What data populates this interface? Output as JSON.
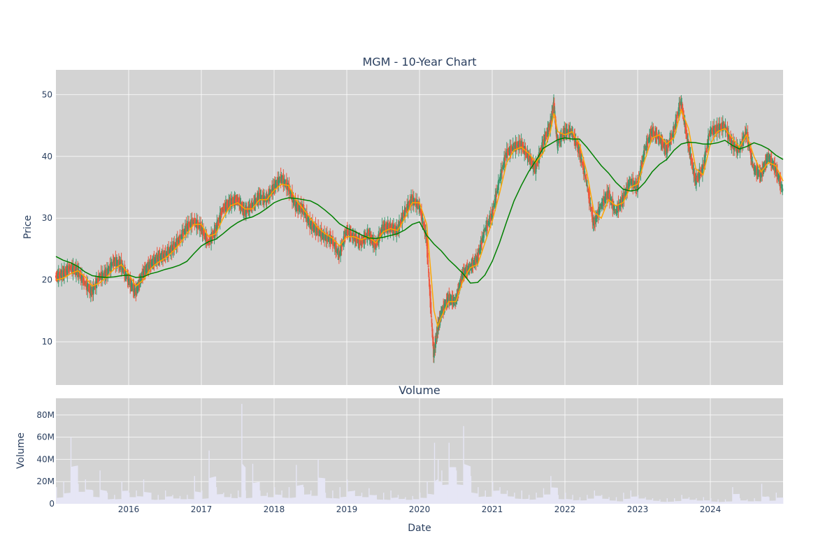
{
  "chart_data": [
    {
      "type": "candlestick",
      "title": "MGM - 10-Year Chart",
      "ylabel": "Price",
      "ylim": [
        3,
        54
      ],
      "xlim": [
        2015.0,
        2025.0
      ],
      "x_ticks": [
        "2016",
        "2017",
        "2018",
        "2019",
        "2020",
        "2021",
        "2022",
        "2023",
        "2024"
      ],
      "y_ticks": [
        10,
        20,
        30,
        40,
        50
      ],
      "grid": true,
      "colors": {
        "background": "#d3d3d3",
        "increasing": "#3d9970",
        "decreasing": "#ef553b",
        "ma_short": "#ffa500",
        "ma_long": "#008000"
      },
      "price_close": {
        "x": [
          2015.0,
          2015.1,
          2015.2,
          2015.3,
          2015.4,
          2015.5,
          2015.6,
          2015.7,
          2015.8,
          2015.9,
          2016.0,
          2016.1,
          2016.2,
          2016.3,
          2016.4,
          2016.5,
          2016.6,
          2016.7,
          2016.8,
          2016.9,
          2017.0,
          2017.1,
          2017.2,
          2017.3,
          2017.4,
          2017.5,
          2017.6,
          2017.7,
          2017.8,
          2017.9,
          2018.0,
          2018.1,
          2018.2,
          2018.3,
          2018.4,
          2018.5,
          2018.6,
          2018.7,
          2018.8,
          2018.9,
          2019.0,
          2019.1,
          2019.2,
          2019.3,
          2019.4,
          2019.5,
          2019.6,
          2019.7,
          2019.8,
          2019.9,
          2020.0,
          2020.1,
          2020.2,
          2020.25,
          2020.3,
          2020.4,
          2020.5,
          2020.6,
          2020.7,
          2020.8,
          2020.9,
          2021.0,
          2021.1,
          2021.2,
          2021.3,
          2021.4,
          2021.5,
          2021.6,
          2021.7,
          2021.8,
          2021.85,
          2021.9,
          2022.0,
          2022.1,
          2022.2,
          2022.3,
          2022.4,
          2022.5,
          2022.6,
          2022.7,
          2022.8,
          2022.9,
          2023.0,
          2023.1,
          2023.2,
          2023.3,
          2023.4,
          2023.5,
          2023.6,
          2023.7,
          2023.8,
          2023.9,
          2024.0,
          2024.1,
          2024.2,
          2024.3,
          2024.4,
          2024.5,
          2024.6,
          2024.7,
          2024.8,
          2024.9,
          2025.0
        ],
        "values": [
          20.5,
          21.0,
          22.0,
          21.5,
          19.5,
          18.0,
          20.5,
          21.0,
          23.0,
          22.5,
          20.0,
          18.0,
          21.0,
          22.5,
          23.5,
          24.0,
          25.0,
          26.5,
          28.5,
          29.5,
          28.5,
          26.0,
          28.0,
          31.5,
          32.5,
          33.0,
          31.0,
          32.0,
          33.5,
          33.0,
          35.0,
          36.5,
          35.0,
          32.0,
          31.5,
          29.0,
          28.0,
          27.0,
          26.5,
          24.0,
          28.0,
          27.0,
          26.0,
          27.5,
          25.5,
          28.5,
          28.5,
          28.0,
          31.0,
          33.0,
          32.0,
          27.0,
          8.0,
          12.0,
          14.5,
          17.0,
          16.5,
          21.0,
          22.0,
          23.5,
          28.0,
          30.5,
          36.0,
          40.5,
          41.5,
          42.0,
          40.0,
          38.0,
          42.0,
          45.0,
          48.5,
          42.0,
          44.0,
          44.0,
          41.0,
          36.0,
          29.0,
          32.0,
          34.0,
          31.0,
          33.0,
          36.0,
          35.0,
          41.0,
          44.0,
          43.0,
          41.0,
          44.0,
          49.0,
          42.0,
          36.0,
          38.0,
          44.0,
          44.5,
          45.0,
          42.0,
          41.0,
          44.0,
          38.0,
          37.0,
          40.0,
          38.0,
          34.5
        ]
      },
      "series": [
        {
          "x": [
            2015.0,
            2015.1,
            2015.2,
            2015.3,
            2015.4,
            2015.5,
            2015.6,
            2015.7,
            2015.8,
            2015.9,
            2016.0,
            2016.1,
            2016.2,
            2016.3,
            2016.4,
            2016.5,
            2016.6,
            2016.7,
            2016.8,
            2016.9,
            2017.0,
            2017.1,
            2017.2,
            2017.3,
            2017.4,
            2017.5,
            2017.6,
            2017.7,
            2017.8,
            2017.9,
            2018.0,
            2018.1,
            2018.2,
            2018.3,
            2018.4,
            2018.5,
            2018.6,
            2018.7,
            2018.8,
            2018.9,
            2019.0,
            2019.1,
            2019.2,
            2019.3,
            2019.4,
            2019.5,
            2019.6,
            2019.7,
            2019.8,
            2019.9,
            2020.0,
            2020.1,
            2020.2,
            2020.25,
            2020.3,
            2020.4,
            2020.5,
            2020.6,
            2020.7,
            2020.8,
            2020.9,
            2021.0,
            2021.1,
            2021.2,
            2021.3,
            2021.4,
            2021.5,
            2021.6,
            2021.7,
            2021.8,
            2021.85,
            2021.9,
            2022.0,
            2022.1,
            2022.2,
            2022.3,
            2022.4,
            2022.5,
            2022.6,
            2022.7,
            2022.8,
            2022.9,
            2023.0,
            2023.1,
            2023.2,
            2023.3,
            2023.4,
            2023.5,
            2023.6,
            2023.7,
            2023.8,
            2023.9,
            2024.0,
            2024.1,
            2024.2,
            2024.3,
            2024.4,
            2024.5,
            2024.6,
            2024.7,
            2024.8,
            2024.9,
            2025.0
          ],
          "values": [
            20.0,
            20.3,
            21.0,
            21.5,
            20.5,
            19.0,
            19.5,
            20.5,
            21.8,
            22.5,
            21.0,
            19.0,
            20.0,
            21.8,
            22.8,
            23.5,
            24.5,
            25.8,
            27.5,
            29.0,
            29.0,
            27.0,
            27.5,
            30.0,
            32.0,
            32.5,
            31.5,
            31.5,
            33.0,
            33.0,
            34.5,
            35.5,
            35.3,
            33.0,
            31.5,
            30.0,
            28.5,
            27.5,
            26.8,
            25.5,
            27.0,
            27.0,
            26.5,
            27.0,
            26.0,
            27.8,
            28.3,
            28.0,
            30.0,
            32.5,
            32.5,
            29.0,
            15.0,
            12.5,
            14.0,
            16.5,
            16.5,
            20.0,
            22.0,
            22.5,
            26.0,
            29.5,
            34.0,
            39.0,
            41.0,
            41.5,
            40.5,
            39.0,
            40.5,
            44.0,
            47.0,
            44.0,
            43.5,
            44.0,
            42.0,
            37.5,
            31.0,
            30.0,
            33.0,
            32.0,
            32.5,
            35.0,
            35.5,
            39.5,
            43.0,
            43.5,
            42.0,
            43.0,
            47.5,
            44.5,
            38.0,
            37.0,
            42.0,
            44.0,
            44.5,
            43.0,
            41.5,
            43.5,
            40.0,
            37.5,
            39.0,
            38.5,
            36.0
          ]
        },
        {
          "x": [
            2015.0,
            2015.1,
            2015.2,
            2015.3,
            2015.4,
            2015.5,
            2015.6,
            2015.7,
            2015.8,
            2015.9,
            2016.0,
            2016.1,
            2016.2,
            2016.3,
            2016.4,
            2016.5,
            2016.6,
            2016.7,
            2016.8,
            2016.9,
            2017.0,
            2017.1,
            2017.2,
            2017.3,
            2017.4,
            2017.5,
            2017.6,
            2017.7,
            2017.8,
            2017.9,
            2018.0,
            2018.1,
            2018.2,
            2018.3,
            2018.4,
            2018.5,
            2018.6,
            2018.7,
            2018.8,
            2018.9,
            2019.0,
            2019.1,
            2019.2,
            2019.3,
            2019.4,
            2019.5,
            2019.6,
            2019.7,
            2019.8,
            2019.9,
            2020.0,
            2020.1,
            2020.2,
            2020.3,
            2020.4,
            2020.5,
            2020.6,
            2020.7,
            2020.8,
            2020.9,
            2021.0,
            2021.1,
            2021.2,
            2021.3,
            2021.4,
            2021.5,
            2021.6,
            2021.7,
            2021.8,
            2021.9,
            2022.0,
            2022.1,
            2022.2,
            2022.3,
            2022.4,
            2022.5,
            2022.6,
            2022.7,
            2022.8,
            2022.9,
            2023.0,
            2023.1,
            2023.2,
            2023.3,
            2023.4,
            2023.5,
            2023.6,
            2023.7,
            2023.8,
            2023.9,
            2024.0,
            2024.1,
            2024.2,
            2024.3,
            2024.4,
            2024.5,
            2024.6,
            2024.7,
            2024.8,
            2024.9,
            2025.0
          ],
          "values": [
            23.8,
            23.2,
            22.8,
            22.2,
            21.3,
            20.7,
            20.5,
            20.4,
            20.5,
            20.7,
            20.8,
            20.4,
            20.5,
            21.0,
            21.3,
            21.7,
            22.0,
            22.4,
            23.0,
            24.3,
            25.5,
            26.2,
            26.6,
            27.5,
            28.5,
            29.3,
            29.9,
            30.2,
            30.8,
            31.6,
            32.5,
            33.0,
            33.3,
            33.2,
            33.0,
            32.8,
            32.2,
            31.3,
            30.3,
            29.1,
            28.4,
            27.9,
            27.3,
            26.8,
            26.7,
            26.9,
            27.2,
            27.5,
            28.1,
            29.0,
            29.4,
            27.2,
            25.8,
            24.7,
            23.3,
            22.2,
            21.0,
            19.5,
            19.6,
            20.8,
            23.0,
            26.0,
            29.5,
            32.8,
            35.3,
            37.5,
            39.3,
            41.3,
            42.0,
            42.7,
            43.0,
            42.8,
            42.8,
            41.5,
            40.0,
            38.5,
            37.3,
            35.8,
            34.7,
            34.4,
            34.6,
            35.8,
            37.5,
            38.7,
            39.5,
            41.0,
            42.0,
            42.3,
            42.2,
            42.0,
            42.0,
            42.2,
            42.6,
            41.8,
            41.2,
            41.6,
            42.2,
            41.8,
            41.2,
            40.2,
            39.5
          ]
        }
      ]
    },
    {
      "type": "bar",
      "title": "Volume",
      "xlabel": "Date",
      "ylabel": "Volume",
      "ylim": [
        0,
        95000000
      ],
      "xlim": [
        2015.0,
        2025.0
      ],
      "y_ticks": [
        "0",
        "20M",
        "40M",
        "60M",
        "80M"
      ],
      "y_tick_values": [
        0,
        20000000,
        40000000,
        60000000,
        80000000
      ],
      "x_ticks": [
        "2016",
        "2017",
        "2018",
        "2019",
        "2020",
        "2021",
        "2022",
        "2023",
        "2024"
      ],
      "grid": true,
      "colors": {
        "background": "#d3d3d3",
        "bar": "#e6e6f5"
      },
      "series": [
        {
          "x": [
            2015.0,
            2015.1,
            2015.2,
            2015.3,
            2015.4,
            2015.5,
            2015.6,
            2015.7,
            2015.8,
            2015.9,
            2016.0,
            2016.1,
            2016.2,
            2016.3,
            2016.4,
            2016.5,
            2016.6,
            2016.7,
            2016.8,
            2016.9,
            2017.0,
            2017.1,
            2017.2,
            2017.3,
            2017.4,
            2017.5,
            2017.55,
            2017.6,
            2017.7,
            2017.8,
            2017.9,
            2018.0,
            2018.1,
            2018.2,
            2018.3,
            2018.4,
            2018.5,
            2018.6,
            2018.7,
            2018.8,
            2018.9,
            2019.0,
            2019.1,
            2019.2,
            2019.3,
            2019.4,
            2019.5,
            2019.6,
            2019.7,
            2019.8,
            2019.9,
            2020.0,
            2020.1,
            2020.2,
            2020.25,
            2020.3,
            2020.4,
            2020.5,
            2020.6,
            2020.7,
            2020.8,
            2020.9,
            2021.0,
            2021.1,
            2021.2,
            2021.3,
            2021.4,
            2021.5,
            2021.6,
            2021.7,
            2021.8,
            2021.9,
            2022.0,
            2022.1,
            2022.2,
            2022.3,
            2022.4,
            2022.5,
            2022.6,
            2022.7,
            2022.8,
            2022.9,
            2023.0,
            2023.1,
            2023.2,
            2023.3,
            2023.4,
            2023.5,
            2023.6,
            2023.7,
            2023.8,
            2023.9,
            2024.0,
            2024.1,
            2024.2,
            2024.3,
            2024.4,
            2024.5,
            2024.6,
            2024.7,
            2024.8,
            2024.9,
            2025.0
          ],
          "values": [
            15000000,
            20000000,
            60000000,
            18000000,
            22000000,
            12000000,
            30000000,
            10000000,
            8000000,
            20000000,
            10000000,
            12000000,
            22000000,
            10000000,
            8000000,
            12000000,
            8000000,
            7000000,
            8000000,
            25000000,
            12000000,
            48000000,
            15000000,
            10000000,
            9000000,
            12000000,
            90000000,
            12000000,
            36000000,
            12000000,
            10000000,
            15000000,
            12000000,
            15000000,
            35000000,
            15000000,
            12000000,
            40000000,
            10000000,
            12000000,
            15000000,
            22000000,
            12000000,
            10000000,
            14000000,
            8000000,
            10000000,
            12000000,
            8000000,
            6000000,
            7000000,
            10000000,
            20000000,
            55000000,
            40000000,
            30000000,
            55000000,
            30000000,
            70000000,
            25000000,
            15000000,
            12000000,
            20000000,
            15000000,
            12000000,
            10000000,
            12000000,
            8000000,
            10000000,
            14000000,
            25000000,
            8000000,
            10000000,
            8000000,
            6000000,
            8000000,
            12000000,
            8000000,
            6000000,
            6000000,
            10000000,
            12000000,
            8000000,
            6000000,
            5000000,
            4000000,
            5000000,
            5000000,
            8000000,
            6000000,
            5000000,
            6000000,
            5000000,
            4000000,
            4000000,
            15000000,
            5000000,
            4000000,
            5000000,
            18000000,
            6000000,
            10000000,
            8000000
          ]
        }
      ]
    }
  ]
}
